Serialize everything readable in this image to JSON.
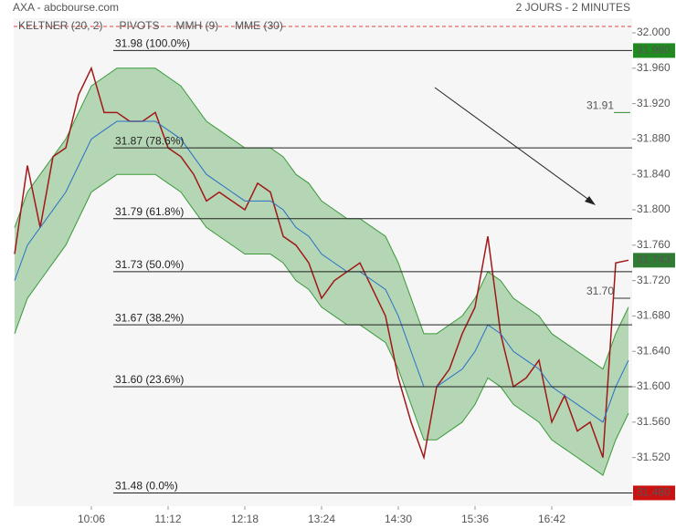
{
  "chart_data": {
    "type": "line",
    "title": "AXA - abcbourse.com",
    "subtitle": "2 JOURS - 2 MINUTES",
    "legend": [
      {
        "name": "KELTNER (20, 2)",
        "color": "#3a9a3a"
      },
      {
        "name": "PIVOTS",
        "color": "#777777"
      },
      {
        "name": "MMH (9)",
        "color": "#c0392b"
      },
      {
        "name": "MME (30)",
        "color": "#2a6fc9"
      }
    ],
    "xlim": [
      0,
      48.3
    ],
    "xticks": [
      {
        "value": 6,
        "label": "10:06"
      },
      {
        "value": 12,
        "label": "11:12"
      },
      {
        "value": 18,
        "label": "12:18"
      },
      {
        "value": 24,
        "label": "13:24"
      },
      {
        "value": 30,
        "label": "14:30"
      },
      {
        "value": 36,
        "label": "15:36"
      },
      {
        "value": 42,
        "label": "16:42"
      }
    ],
    "ylim": [
      31.465,
      32.0165
    ],
    "yticks": [
      {
        "value": 32.0,
        "label": "32.000"
      },
      {
        "value": 31.96,
        "label": "31.960"
      },
      {
        "value": 31.92,
        "label": "31.920"
      },
      {
        "value": 31.88,
        "label": "31.880"
      },
      {
        "value": 31.84,
        "label": "31.840"
      },
      {
        "value": 31.8,
        "label": "31.800"
      },
      {
        "value": 31.76,
        "label": "31.760"
      },
      {
        "value": 31.72,
        "label": "31.720"
      },
      {
        "value": 31.68,
        "label": "31.680"
      },
      {
        "value": 31.64,
        "label": "31.640"
      },
      {
        "value": 31.6,
        "label": "31.600"
      },
      {
        "value": 31.56,
        "label": "31.560"
      },
      {
        "value": 31.52,
        "label": "31.520"
      },
      {
        "value": 31.48,
        "label": "31.480"
      }
    ],
    "band": {
      "color": "#3a9a3a",
      "upper": [
        31.78,
        31.82,
        31.84,
        31.86,
        31.88,
        31.91,
        31.94,
        31.95,
        31.96,
        31.96,
        31.96,
        31.96,
        31.95,
        31.94,
        31.92,
        31.9,
        31.89,
        31.88,
        31.87,
        31.87,
        31.87,
        31.86,
        31.84,
        31.83,
        31.81,
        31.8,
        31.79,
        31.79,
        31.78,
        31.77,
        31.74,
        31.7,
        31.66,
        31.66,
        31.67,
        31.68,
        31.7,
        31.73,
        31.72,
        31.7,
        31.69,
        31.68,
        31.66,
        31.65,
        31.64,
        31.63,
        31.62,
        31.66,
        31.69
      ],
      "lower": [
        31.66,
        31.7,
        31.72,
        31.74,
        31.76,
        31.79,
        31.82,
        31.83,
        31.84,
        31.84,
        31.84,
        31.84,
        31.83,
        31.82,
        31.8,
        31.78,
        31.77,
        31.76,
        31.75,
        31.75,
        31.75,
        31.74,
        31.72,
        31.71,
        31.69,
        31.68,
        31.67,
        31.67,
        31.66,
        31.65,
        31.62,
        31.58,
        31.54,
        31.54,
        31.55,
        31.56,
        31.58,
        31.61,
        31.6,
        31.58,
        31.57,
        31.56,
        31.54,
        31.53,
        31.52,
        31.51,
        31.5,
        31.54,
        31.57
      ]
    },
    "series": [
      {
        "color": "#a01818",
        "values": [
          31.75,
          31.85,
          31.78,
          31.86,
          31.87,
          31.93,
          31.96,
          31.91,
          31.91,
          31.9,
          31.9,
          31.91,
          31.87,
          31.86,
          31.84,
          31.81,
          31.82,
          31.81,
          31.8,
          31.83,
          31.82,
          31.77,
          31.76,
          31.74,
          31.7,
          31.72,
          31.73,
          31.74,
          31.71,
          31.68,
          31.61,
          31.56,
          31.52,
          31.6,
          31.62,
          31.66,
          31.69,
          31.77,
          31.66,
          31.6,
          31.61,
          31.63,
          31.56,
          31.59,
          31.55,
          31.56,
          31.52,
          31.74,
          31.743
        ]
      },
      {
        "color": "#2a6fc9",
        "values": [
          31.72,
          31.76,
          31.78,
          31.8,
          31.82,
          31.85,
          31.88,
          31.89,
          31.9,
          31.9,
          31.9,
          31.9,
          31.89,
          31.88,
          31.86,
          31.84,
          31.83,
          31.82,
          31.81,
          31.81,
          31.81,
          31.8,
          31.78,
          31.77,
          31.75,
          31.74,
          31.73,
          31.73,
          31.72,
          31.71,
          31.68,
          31.64,
          31.6,
          31.6,
          31.61,
          31.62,
          31.64,
          31.67,
          31.66,
          31.64,
          31.63,
          31.62,
          31.6,
          31.59,
          31.58,
          31.57,
          31.56,
          31.6,
          31.63
        ]
      }
    ],
    "fib_levels": [
      {
        "value": 31.98,
        "label": "31.98 (100.0%)"
      },
      {
        "value": 31.87,
        "label": "31.87 (78.6%)"
      },
      {
        "value": 31.79,
        "label": "31.79 (61.8%)"
      },
      {
        "value": 31.73,
        "label": "31.73 (50.0%)"
      },
      {
        "value": 31.67,
        "label": "31.67 (38.2%)"
      },
      {
        "value": 31.6,
        "label": "31.60 (23.6%)"
      },
      {
        "value": 31.48,
        "label": "31.48 (0.0%)"
      }
    ],
    "annotations": [
      {
        "value": 31.91,
        "label": "31.91",
        "color": "#2e8b2e"
      },
      {
        "value": 31.7,
        "label": "31.70",
        "color": "#333333"
      }
    ],
    "price_markers": [
      {
        "value": 31.98,
        "label": "31.980",
        "color": "#1e8c1e"
      },
      {
        "value": 31.743,
        "label": "31.743",
        "color": "#2e7d32"
      },
      {
        "value": 31.48,
        "label": "31.480",
        "color": "#cc1111"
      }
    ]
  }
}
